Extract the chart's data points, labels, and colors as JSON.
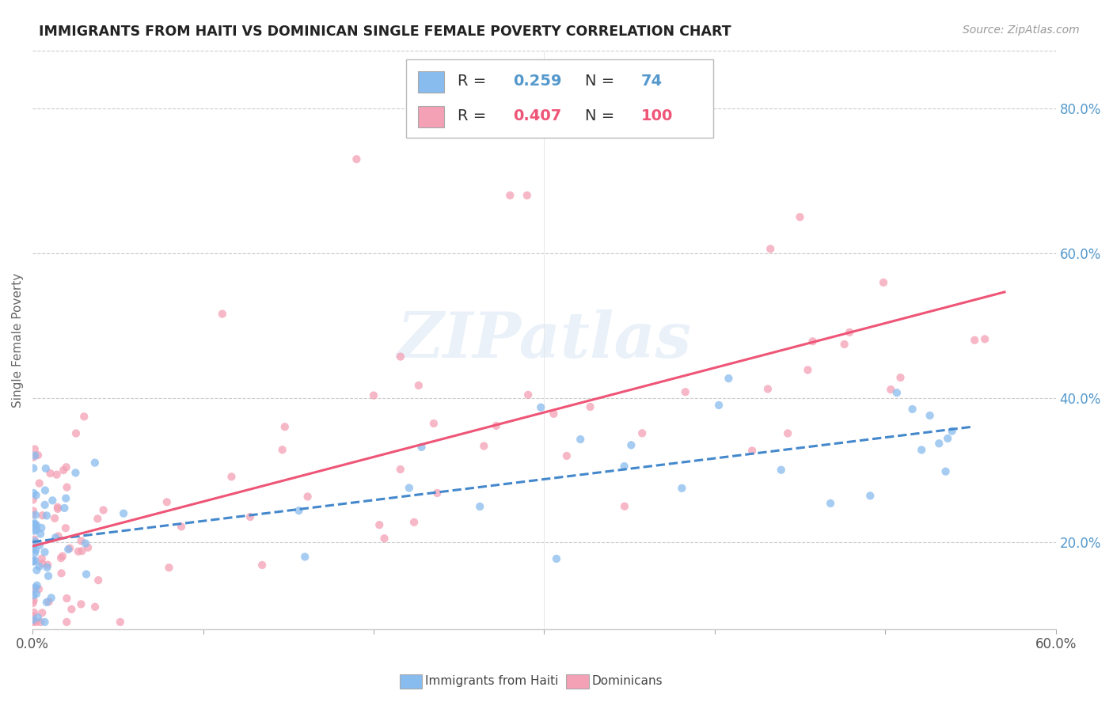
{
  "title": "IMMIGRANTS FROM HAITI VS DOMINICAN SINGLE FEMALE POVERTY CORRELATION CHART",
  "source": "Source: ZipAtlas.com",
  "ylabel": "Single Female Poverty",
  "xlim": [
    0.0,
    0.6
  ],
  "ylim": [
    0.08,
    0.88
  ],
  "x_ticks": [
    0.0,
    0.1,
    0.2,
    0.3,
    0.4,
    0.5,
    0.6
  ],
  "x_tick_labels": [
    "0.0%",
    "",
    "",
    "",
    "",
    "",
    "60.0%"
  ],
  "y_ticks_right": [
    0.2,
    0.4,
    0.6,
    0.8
  ],
  "y_tick_labels_right": [
    "20.0%",
    "40.0%",
    "60.0%",
    "80.0%"
  ],
  "haiti_R": 0.259,
  "haiti_N": 74,
  "dominican_R": 0.407,
  "dominican_N": 100,
  "haiti_color": "#88bbee",
  "dominican_color": "#f4a0b5",
  "haiti_line_color": "#4488cc",
  "dominican_line_color": "#ee5577",
  "watermark_text": "ZIPatlas",
  "legend_label_haiti": "Immigrants from Haiti",
  "legend_label_dominican": "Dominicans",
  "haiti_line_intercept": 0.215,
  "haiti_line_slope": 0.22,
  "dominican_line_intercept": 0.215,
  "dominican_line_slope": 0.37
}
